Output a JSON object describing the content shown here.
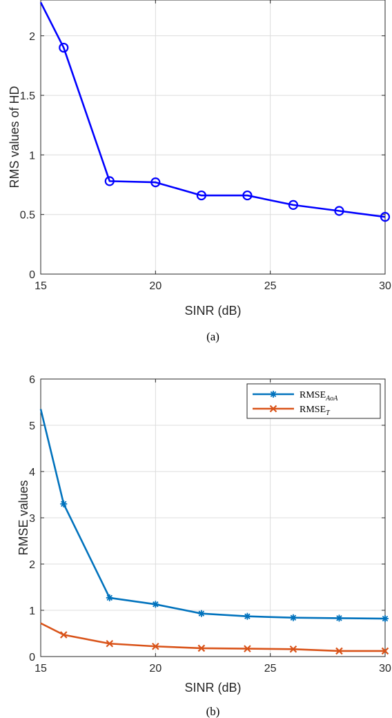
{
  "chart_data": [
    {
      "type": "line",
      "panel": "a",
      "caption": "(a)",
      "xlabel": "SINR (dB)",
      "ylabel": "RMS values of HD",
      "xlim": [
        15,
        30
      ],
      "ylim": [
        0,
        2.3
      ],
      "xticks": [
        15,
        20,
        25,
        30
      ],
      "yticks": [
        0,
        0.5,
        1,
        1.5,
        2
      ],
      "grid": true,
      "series": [
        {
          "color": "#0000ff",
          "marker": "circle",
          "x": [
            15,
            16,
            18,
            20,
            22,
            24,
            26,
            28,
            30
          ],
          "y": [
            2.28,
            1.9,
            0.78,
            0.77,
            0.66,
            0.66,
            0.58,
            0.53,
            0.48
          ],
          "marker_x": [
            16,
            18,
            20,
            22,
            24,
            26,
            28,
            30
          ]
        }
      ]
    },
    {
      "type": "line",
      "panel": "b",
      "caption": "(b)",
      "xlabel": "SINR (dB)",
      "ylabel": "RMSE values",
      "xlim": [
        15,
        30
      ],
      "ylim": [
        0,
        6
      ],
      "xticks": [
        15,
        20,
        25,
        30
      ],
      "yticks": [
        0,
        1,
        2,
        3,
        4,
        5,
        6
      ],
      "grid": true,
      "legend": "top-right",
      "series": [
        {
          "name": "RMSE",
          "subscript": "AoA",
          "color": "#0072bd",
          "marker": "asterisk",
          "x": [
            15,
            16,
            18,
            20,
            22,
            24,
            26,
            28,
            30
          ],
          "y": [
            5.35,
            3.3,
            1.27,
            1.13,
            0.93,
            0.87,
            0.84,
            0.83,
            0.82
          ],
          "marker_x": [
            16,
            18,
            20,
            22,
            24,
            26,
            28,
            30
          ]
        },
        {
          "name": "RMSE",
          "subscript": "T",
          "color": "#d95319",
          "marker": "x",
          "x": [
            15,
            16,
            18,
            20,
            22,
            24,
            26,
            28,
            30
          ],
          "y": [
            0.72,
            0.47,
            0.28,
            0.22,
            0.18,
            0.17,
            0.16,
            0.12,
            0.12
          ],
          "marker_x": [
            16,
            18,
            20,
            22,
            24,
            26,
            28,
            30
          ]
        }
      ]
    }
  ]
}
